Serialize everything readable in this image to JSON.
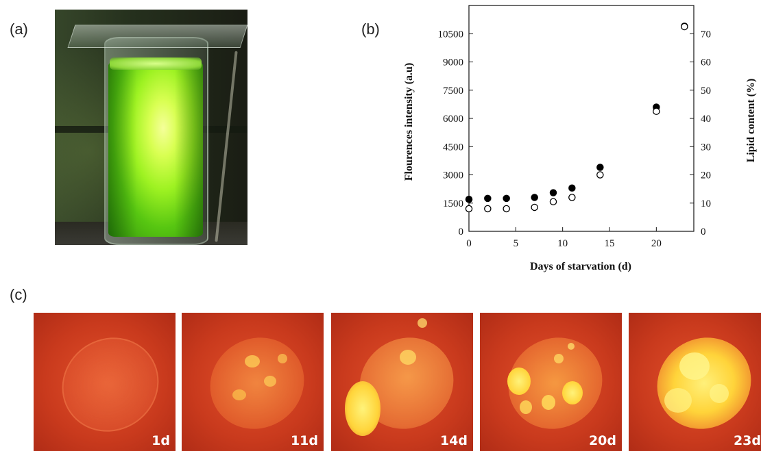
{
  "panel_labels": {
    "a": "(a)",
    "b": "(b)",
    "c": "(c)"
  },
  "micrographs": [
    {
      "day_label": "1d"
    },
    {
      "day_label": "11d"
    },
    {
      "day_label": "14d"
    },
    {
      "day_label": "20d"
    },
    {
      "day_label": "23d"
    }
  ],
  "colors": {
    "micrograph_background": "#c93a1d",
    "lipid_droplet": "#ffe04a",
    "culture_green": "#9ef222"
  },
  "chart_data": {
    "type": "scatter",
    "xlabel": "Days of starvation (d)",
    "ylabel_left": "Flourences intensity (a.u)",
    "ylabel_right": "Lipid content (%)",
    "xlim": [
      0,
      24
    ],
    "ylim_left": [
      0,
      12000
    ],
    "ylim_right": [
      0,
      80
    ],
    "xticks": [
      0,
      5,
      10,
      15,
      20
    ],
    "yticks_left": [
      0,
      1500,
      3000,
      4500,
      6000,
      7500,
      9000,
      10500
    ],
    "yticks_right": [
      0,
      10,
      20,
      30,
      40,
      50,
      60,
      70
    ],
    "grid": false,
    "series": [
      {
        "marker": "filled-circle",
        "axis": "left",
        "x": [
          0,
          2,
          4,
          7,
          9,
          11,
          14,
          20,
          23
        ],
        "y": [
          1700,
          1750,
          1750,
          1800,
          2050,
          2300,
          3400,
          6600,
          10900
        ]
      },
      {
        "marker": "open-circle",
        "axis": "right",
        "x": [
          0,
          2,
          4,
          7,
          9,
          11,
          14,
          20,
          23
        ],
        "y": [
          8,
          8,
          8,
          8.5,
          10.5,
          12,
          20,
          42.5,
          72.5
        ]
      }
    ]
  }
}
